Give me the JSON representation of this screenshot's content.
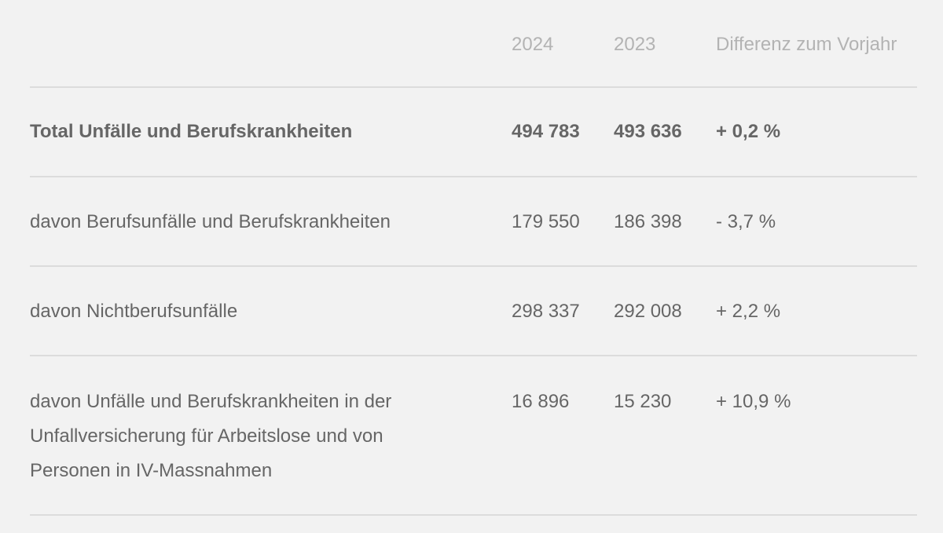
{
  "header": {
    "label": "",
    "col_2024": "2024",
    "col_2023": "2023",
    "col_diff": "Differenz zum Vorjahr"
  },
  "rows": [
    {
      "label": "Total Unfälle und Berufskrankheiten",
      "v2024": "494 783",
      "v2023": "493 636",
      "diff": "+ 0,2 %"
    },
    {
      "label": "davon Berufsunfälle und Berufskrankheiten",
      "v2024": "179 550",
      "v2023": "186 398",
      "diff": "- 3,7 %"
    },
    {
      "label": "davon Nichtberufsunfälle",
      "v2024": "298 337",
      "v2023": "292 008",
      "diff": "+ 2,2 %"
    },
    {
      "label": "davon Unfälle und Berufskrankheiten in der Unfallversicherung für Arbeitslose und von Personen in IV-Massnahmen",
      "v2024": "16 896",
      "v2023": "15 230",
      "diff": "+ 10,9 %"
    }
  ]
}
